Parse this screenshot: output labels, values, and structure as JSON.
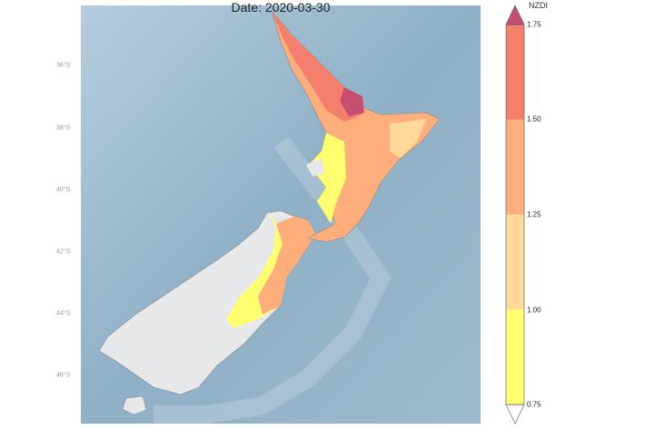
{
  "title": "Date: 2020-03-30",
  "latitude_labels": [
    "36°S",
    "38°S",
    "40°S",
    "42°S",
    "44°S",
    "46°S"
  ],
  "colorbar": {
    "label": "NZDI",
    "ticks": [
      "0.75",
      "1.00",
      "1.25",
      "1.50",
      "1.75"
    ],
    "colors": [
      "#ffff70",
      "#fed99a",
      "#fdae7b",
      "#f47f6c"
    ],
    "over_color": "#c64f70",
    "under_color": "#ffffff",
    "extend": "both"
  },
  "colors": {
    "ocean": "#9fbcd0",
    "land_nodata": "#e6e8ea"
  }
}
